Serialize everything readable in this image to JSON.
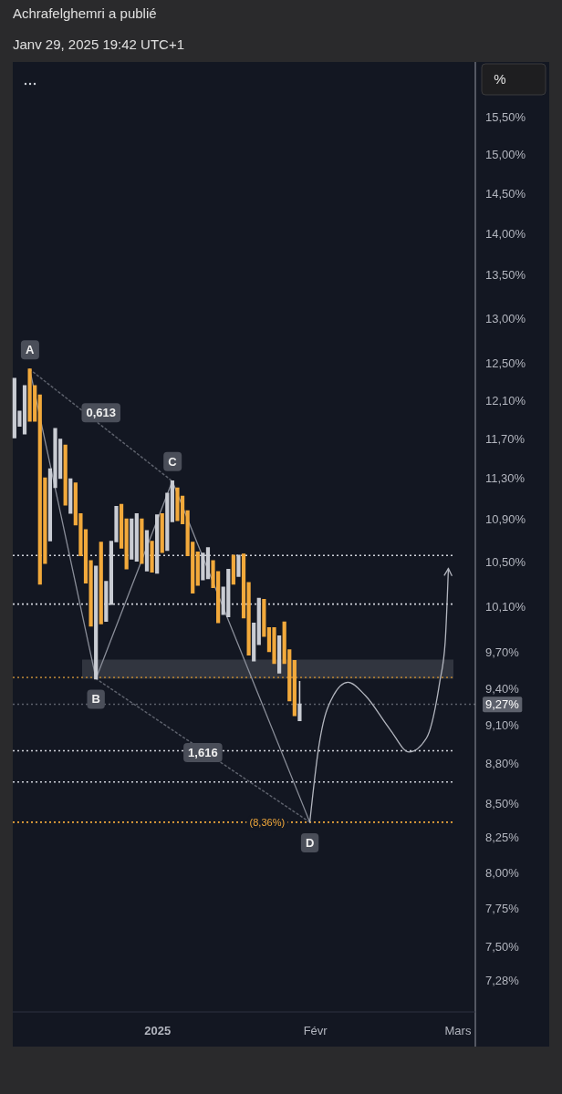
{
  "chart_data": {
    "type": "candlestick",
    "title": "Achrafelghemri a publié",
    "subtitle": "Janv 29, 2025 19:42 UTC+1",
    "x": [
      "2024-12-04",
      "2024-12-05",
      "2024-12-06",
      "2024-12-07",
      "2024-12-08",
      "2024-12-09",
      "2024-12-10",
      "2024-12-11",
      "2024-12-12",
      "2024-12-13",
      "2024-12-14",
      "2024-12-15",
      "2024-12-16",
      "2024-12-17",
      "2024-12-18",
      "2024-12-19",
      "2024-12-20",
      "2024-12-21",
      "2024-12-22",
      "2024-12-23",
      "2024-12-24",
      "2024-12-25",
      "2024-12-26",
      "2024-12-27",
      "2024-12-28",
      "2024-12-29",
      "2024-12-30",
      "2024-12-31",
      "2025-01-01",
      "2025-01-02",
      "2025-01-03",
      "2025-01-04",
      "2025-01-05",
      "2025-01-06",
      "2025-01-07",
      "2025-01-08",
      "2025-01-09",
      "2025-01-10",
      "2025-01-11",
      "2025-01-12",
      "2025-01-13",
      "2025-01-14",
      "2025-01-15",
      "2025-01-16",
      "2025-01-17",
      "2025-01-18",
      "2025-01-19",
      "2025-01-20",
      "2025-01-21",
      "2025-01-22",
      "2025-01-23",
      "2025-01-24",
      "2025-01-25",
      "2025-01-26",
      "2025-01-27",
      "2025-01-28",
      "2025-01-29"
    ],
    "ohlc": [
      [
        11.71,
        12.33,
        11.71,
        12.33
      ],
      [
        11.83,
        11.98,
        11.83,
        11.98
      ],
      [
        11.75,
        12.25,
        11.75,
        12.25
      ],
      [
        12.43,
        12.43,
        11.88,
        11.88
      ],
      [
        12.25,
        12.25,
        11.88,
        11.88
      ],
      [
        12.15,
        12.15,
        10.3,
        10.3
      ],
      [
        11.3,
        11.3,
        10.49,
        10.49
      ],
      [
        10.7,
        11.39,
        10.7,
        11.39
      ],
      [
        11.21,
        11.8,
        11.21,
        11.8
      ],
      [
        11.3,
        11.69,
        11.3,
        11.69
      ],
      [
        11.63,
        11.63,
        11.04,
        11.04
      ],
      [
        10.96,
        11.29,
        10.96,
        11.29
      ],
      [
        11.25,
        11.25,
        10.85,
        10.85
      ],
      [
        10.95,
        10.95,
        10.56,
        10.56
      ],
      [
        10.8,
        10.8,
        10.31,
        10.31
      ],
      [
        10.51,
        10.51,
        9.93,
        9.93
      ],
      [
        9.48,
        10.46,
        9.48,
        10.46
      ],
      [
        10.68,
        10.68,
        9.95,
        9.95
      ],
      [
        9.97,
        10.32,
        9.97,
        10.32
      ],
      [
        10.12,
        10.69,
        10.12,
        10.69
      ],
      [
        10.69,
        11.02,
        10.69,
        11.02
      ],
      [
        11.04,
        11.04,
        10.63,
        10.63
      ],
      [
        10.9,
        10.9,
        10.44,
        10.44
      ],
      [
        10.53,
        10.9,
        10.53,
        10.9
      ],
      [
        10.51,
        10.95,
        10.51,
        10.95
      ],
      [
        10.9,
        10.9,
        10.49,
        10.49
      ],
      [
        10.42,
        10.79,
        10.42,
        10.79
      ],
      [
        10.69,
        10.69,
        10.41,
        10.41
      ],
      [
        10.4,
        10.94,
        10.4,
        10.94
      ],
      [
        10.95,
        10.95,
        10.59,
        10.59
      ],
      [
        10.61,
        11.15,
        10.61,
        11.15
      ],
      [
        10.88,
        11.27,
        10.88,
        11.27
      ],
      [
        11.2,
        11.2,
        10.89,
        10.89
      ],
      [
        11.12,
        11.12,
        10.86,
        10.86
      ],
      [
        10.98,
        10.98,
        10.56,
        10.56
      ],
      [
        10.68,
        10.68,
        10.22,
        10.22
      ],
      [
        10.59,
        10.59,
        10.29,
        10.29
      ],
      [
        10.34,
        10.58,
        10.34,
        10.58
      ],
      [
        10.35,
        10.63,
        10.35,
        10.63
      ],
      [
        10.51,
        10.51,
        10.27,
        10.27
      ],
      [
        10.41,
        10.41,
        9.96,
        9.96
      ],
      [
        10.03,
        10.27,
        10.03,
        10.27
      ],
      [
        10.01,
        10.43,
        10.01,
        10.43
      ],
      [
        10.56,
        10.56,
        10.3,
        10.3
      ],
      [
        10.37,
        10.56,
        10.37,
        10.56
      ],
      [
        10.57,
        10.57,
        10.0,
        10.0
      ],
      [
        10.31,
        10.31,
        9.68,
        9.68
      ],
      [
        9.63,
        9.95,
        9.63,
        9.95
      ],
      [
        9.77,
        10.17,
        9.77,
        10.17
      ],
      [
        10.16,
        10.16,
        9.84,
        9.84
      ],
      [
        9.91,
        9.91,
        9.71,
        9.71
      ],
      [
        9.91,
        9.91,
        9.61,
        9.61
      ],
      [
        9.53,
        9.84,
        9.53,
        9.84
      ],
      [
        9.96,
        9.96,
        9.61,
        9.61
      ],
      [
        9.72,
        9.72,
        9.3,
        9.3
      ],
      [
        9.63,
        9.63,
        9.18,
        9.18
      ],
      [
        9.14,
        9.46,
        9.14,
        9.27
      ]
    ],
    "colors": [
      "#c9ccd3",
      "#c9ccd3",
      "#c9ccd3",
      "#f2a93b",
      "#f2a93b",
      "#f2a93b",
      "#f2a93b",
      "#c9ccd3",
      "#c9ccd3",
      "#c9ccd3",
      "#f2a93b",
      "#c9ccd3",
      "#f2a93b",
      "#f2a93b",
      "#f2a93b",
      "#f2a93b",
      "#c9ccd3",
      "#f2a93b",
      "#c9ccd3",
      "#c9ccd3",
      "#c9ccd3",
      "#f2a93b",
      "#f2a93b",
      "#c9ccd3",
      "#c9ccd3",
      "#f2a93b",
      "#c9ccd3",
      "#f2a93b",
      "#c9ccd3",
      "#f2a93b",
      "#c9ccd3",
      "#c9ccd3",
      "#f2a93b",
      "#f2a93b",
      "#f2a93b",
      "#f2a93b",
      "#f2a93b",
      "#c9ccd3",
      "#c9ccd3",
      "#f2a93b",
      "#f2a93b",
      "#c9ccd3",
      "#c9ccd3",
      "#f2a93b",
      "#c9ccd3",
      "#f2a93b",
      "#f2a93b",
      "#c9ccd3",
      "#c9ccd3",
      "#f2a93b",
      "#f2a93b",
      "#f2a93b",
      "#c9ccd3",
      "#f2a93b",
      "#f2a93b",
      "#f2a93b",
      "#c9ccd3"
    ],
    "series": [
      {
        "type": "line",
        "color": "#8a8e99",
        "line_style": "solid",
        "x": [
          "2024-12-07",
          "2024-12-20",
          "2025-01-04",
          "2025-01-31"
        ],
        "values": [
          12.43,
          9.48,
          11.27,
          8.36
        ]
      },
      {
        "type": "line",
        "color": "#5d616c",
        "line_style": "dotted",
        "x": [
          "2024-12-07",
          "2025-01-04"
        ],
        "values": [
          12.43,
          11.27
        ]
      },
      {
        "type": "line",
        "color": "#5d616c",
        "line_style": "dotted",
        "x": [
          "2024-12-20",
          "2025-01-31"
        ],
        "values": [
          9.48,
          8.36
        ]
      },
      {
        "type": "line",
        "color": "#b2b5be",
        "line_style": "solid",
        "x": [
          "2025-01-31",
          "2025-02-01T19:00",
          "2025-02-03T12:00",
          "2025-02-07T12:00",
          "2025-02-10T22:00",
          "2025-02-15T17:00",
          "2025-02-19T12:00",
          "2025-02-22T22:00",
          "2025-02-25T12:00",
          "2025-02-26T14:00",
          "2025-02-27T05:00"
        ],
        "values": [
          8.36,
          8.94,
          9.24,
          9.45,
          9.34,
          9.07,
          8.89,
          9.0,
          9.45,
          9.79,
          10.44
        ]
      }
    ],
    "ref_lines": [
      {
        "axis": "y",
        "value": 10.56,
        "color": "#d1d4dc",
        "line_style": "dotted"
      },
      {
        "axis": "y",
        "value": 10.12,
        "color": "#d1d4dc",
        "line_style": "dotted"
      },
      {
        "axis": "y",
        "value": 9.49,
        "color": "#a87a35",
        "line_style": "dotted"
      },
      {
        "axis": "y",
        "value": 9.27,
        "color": "#5d616c",
        "line_style": "dotted"
      },
      {
        "axis": "y",
        "value": 8.9,
        "color": "#d1d4dc",
        "line_style": "dotted"
      },
      {
        "axis": "y",
        "value": 8.66,
        "color": "#d1d4dc",
        "line_style": "dotted"
      },
      {
        "axis": "y",
        "value": 8.36,
        "color": "#f2a93b",
        "line_style": "dotted",
        "label": "(8,36%)"
      }
    ],
    "bands": [
      {
        "axis": "y",
        "from": 9.48,
        "to": 9.64,
        "color": "#353842"
      }
    ],
    "annotations": [
      "%",
      {
        "text": "A",
        "x": "2024-12-07",
        "y": 12.43
      },
      {
        "text": "B",
        "x": "2024-12-20",
        "y": 9.48
      },
      {
        "text": "C",
        "x": "2025-01-04",
        "y": 11.27
      },
      {
        "text": "D",
        "x": "2025-01-31",
        "y": 8.36
      },
      {
        "text": "0,613",
        "x": "2024-12-21",
        "y": 11.97
      },
      {
        "text": "1,616",
        "x": "2025-01-10",
        "y": 8.89
      }
    ],
    "log": true,
    "grid": false,
    "xlim": [
      "2024-12-03T16:00",
      "2025-03-04T12:00"
    ],
    "xticks": [
      {
        "value": "2025-01-01",
        "label": "2025"
      },
      {
        "value": "2025-02-01",
        "label": "Févr"
      },
      {
        "value": "2025-03-01",
        "label": "Mars"
      }
    ],
    "ylim": [
      7.08,
      16.27
    ],
    "yticks": [
      {
        "value": 15.5,
        "label": "15,50%"
      },
      {
        "value": 15,
        "label": "15,00%"
      },
      {
        "value": 14.5,
        "label": "14,50%"
      },
      {
        "value": 14,
        "label": "14,00%"
      },
      {
        "value": 13.5,
        "label": "13,50%"
      },
      {
        "value": 13,
        "label": "13,00%"
      },
      {
        "value": 12.5,
        "label": "12,50%"
      },
      {
        "value": 12.1,
        "label": "12,10%"
      },
      {
        "value": 11.7,
        "label": "11,70%"
      },
      {
        "value": 11.3,
        "label": "11,30%"
      },
      {
        "value": 10.9,
        "label": "10,90%"
      },
      {
        "value": 10.5,
        "label": "10,50%"
      },
      {
        "value": 10.1,
        "label": "10,10%"
      },
      {
        "value": 9.7,
        "label": "9,70%"
      },
      {
        "value": 9.4,
        "label": "9,40%"
      },
      {
        "value": 9.27,
        "label": "9,27%"
      },
      {
        "value": 9.1,
        "label": "9,10%"
      },
      {
        "value": 8.8,
        "label": "8,80%"
      },
      {
        "value": 8.5,
        "label": "8,50%"
      },
      {
        "value": 8.25,
        "label": "8,25%"
      },
      {
        "value": 8,
        "label": "8,00%"
      },
      {
        "value": 7.75,
        "label": "7,75%"
      },
      {
        "value": 7.5,
        "label": "7,50%"
      },
      {
        "value": 7.28,
        "label": "7,28%"
      }
    ]
  }
}
